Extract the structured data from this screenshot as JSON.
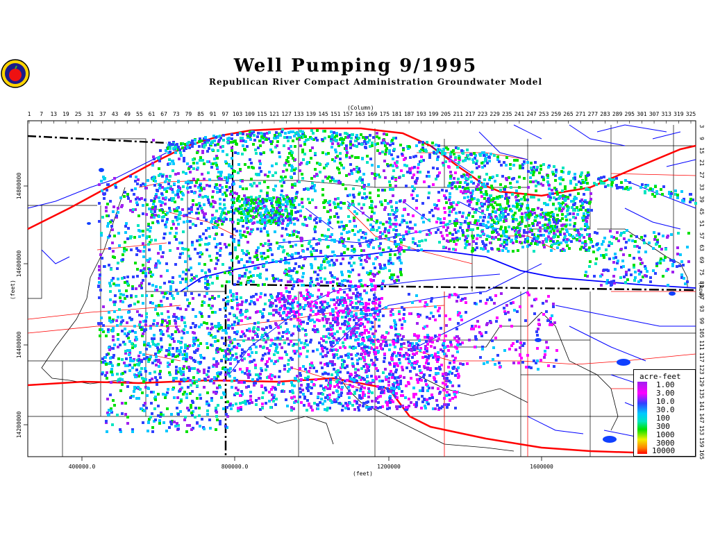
{
  "title": "Well Pumping 9/1995",
  "subtitle": "Republican River Compact Administration Groundwater Model",
  "axes": {
    "column_label": "(Column)",
    "row_label": "(Row)",
    "y_feet_label": "(feet)",
    "x_feet_label": "(feet)",
    "column_ticks": [
      "1",
      "7",
      "13",
      "19",
      "25",
      "31",
      "37",
      "43",
      "49",
      "55",
      "61",
      "67",
      "73",
      "79",
      "85",
      "91",
      "97",
      "103",
      "109",
      "115",
      "121",
      "127",
      "133",
      "139",
      "145",
      "151",
      "157",
      "163",
      "169",
      "175",
      "181",
      "187",
      "193",
      "199",
      "205",
      "211",
      "217",
      "223",
      "229",
      "235",
      "241",
      "247",
      "253",
      "259",
      "265",
      "271",
      "277",
      "283",
      "289",
      "295",
      "301",
      "307",
      "313",
      "319",
      "325"
    ],
    "row_ticks": [
      "3",
      "9",
      "15",
      "21",
      "27",
      "33",
      "39",
      "45",
      "51",
      "57",
      "63",
      "69",
      "75",
      "81",
      "87",
      "93",
      "99",
      "105",
      "111",
      "117",
      "123",
      "129",
      "135",
      "141",
      "147",
      "153",
      "159",
      "165"
    ],
    "x_feet_ticks": [
      "400000.0",
      "800000.0",
      "1200000",
      "1600000"
    ],
    "y_feet_ticks": [
      "14800000",
      "14600000",
      "14400000",
      "14200000"
    ]
  },
  "legend": {
    "title": "acre-feet",
    "items": [
      "1.00",
      "3.00",
      "10.0",
      "30.0",
      "100",
      "300",
      "1000",
      "3000",
      "10000"
    ],
    "colors": [
      "#a020f0",
      "#ff00ff",
      "#3040ff",
      "#00c8ff",
      "#00e5c0",
      "#00e000",
      "#f0f000",
      "#ff8000",
      "#ff0000"
    ]
  },
  "colors": {
    "rivers": "#0000ff",
    "roads": "#ff0000",
    "boundaries": "#000000"
  }
}
